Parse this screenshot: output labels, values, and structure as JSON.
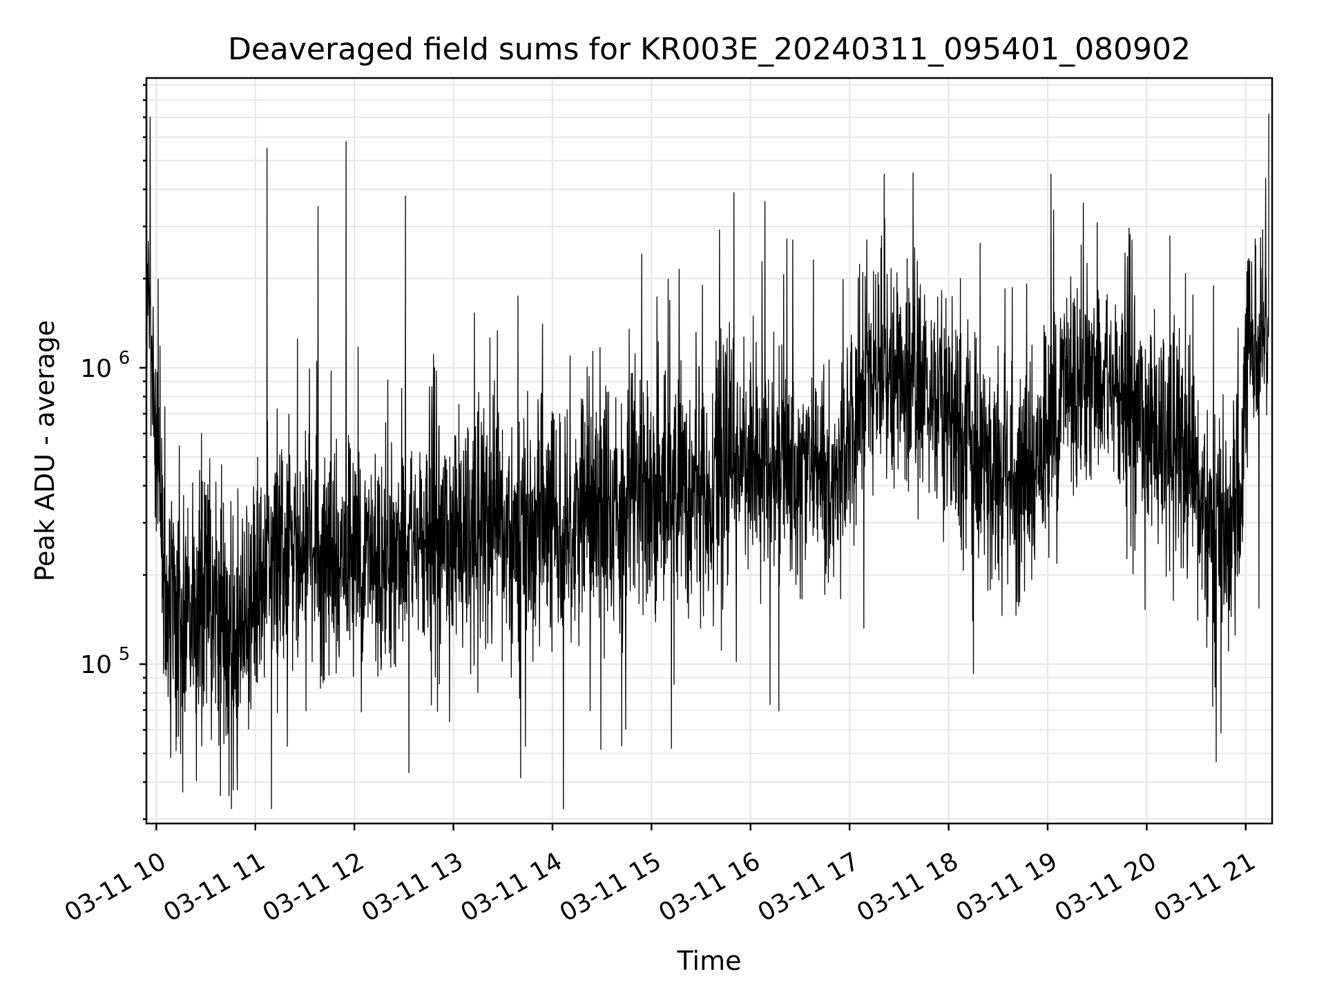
{
  "chart_data": {
    "type": "line",
    "title": "Deaveraged field sums for KR003E_20240311_095401_080902",
    "xlabel": "Time",
    "ylabel": "Peak ADU - average",
    "y_scale": "log",
    "ylim": [
      29000,
      9500000
    ],
    "xlim": [
      "2024-03-11 09:54",
      "2024-03-11 21:16"
    ],
    "grid": true,
    "line_color": "#000000",
    "x_ticks": [
      {
        "value": "2024-03-11 10:00",
        "label": "03-11 10"
      },
      {
        "value": "2024-03-11 11:00",
        "label": "03-11 11"
      },
      {
        "value": "2024-03-11 12:00",
        "label": "03-11 12"
      },
      {
        "value": "2024-03-11 13:00",
        "label": "03-11 13"
      },
      {
        "value": "2024-03-11 14:00",
        "label": "03-11 14"
      },
      {
        "value": "2024-03-11 15:00",
        "label": "03-11 15"
      },
      {
        "value": "2024-03-11 16:00",
        "label": "03-11 16"
      },
      {
        "value": "2024-03-11 17:00",
        "label": "03-11 17"
      },
      {
        "value": "2024-03-11 18:00",
        "label": "03-11 18"
      },
      {
        "value": "2024-03-11 19:00",
        "label": "03-11 19"
      },
      {
        "value": "2024-03-11 20:00",
        "label": "03-11 20"
      },
      {
        "value": "2024-03-11 21:00",
        "label": "03-11 21"
      }
    ],
    "y_ticks": [
      {
        "value": 100000,
        "base": "10",
        "exp": "5"
      },
      {
        "value": 1000000,
        "base": "10",
        "exp": "6"
      }
    ],
    "series": [
      {
        "x": [
          "2024-03-11 09:54",
          "2024-03-11 09:55",
          "2024-03-11 09:57",
          "2024-03-11 09:59",
          "2024-03-11 10:02",
          "2024-03-11 10:05",
          "2024-03-11 10:08",
          "2024-03-11 10:12",
          "2024-03-11 10:16",
          "2024-03-11 10:22",
          "2024-03-11 10:30",
          "2024-03-11 10:38",
          "2024-03-11 10:42",
          "2024-03-11 10:47",
          "2024-03-11 10:55",
          "2024-03-11 11:06",
          "2024-03-11 11:20",
          "2024-03-11 11:40",
          "2024-03-11 11:55",
          "2024-03-11 12:10",
          "2024-03-11 12:25",
          "2024-03-11 12:31",
          "2024-03-11 12:45",
          "2024-03-11 13:00",
          "2024-03-11 13:20",
          "2024-03-11 13:40",
          "2024-03-11 14:00",
          "2024-03-11 14:20",
          "2024-03-11 14:40",
          "2024-03-11 15:00",
          "2024-03-11 15:20",
          "2024-03-11 15:38",
          "2024-03-11 15:50",
          "2024-03-11 16:10",
          "2024-03-11 16:30",
          "2024-03-11 16:50",
          "2024-03-11 17:00",
          "2024-03-11 17:12",
          "2024-03-11 17:30",
          "2024-03-11 17:50",
          "2024-03-11 18:05",
          "2024-03-11 18:20",
          "2024-03-11 18:40",
          "2024-03-11 19:00",
          "2024-03-11 19:10",
          "2024-03-11 19:25",
          "2024-03-11 19:45",
          "2024-03-11 20:00",
          "2024-03-11 20:20",
          "2024-03-11 20:30",
          "2024-03-11 20:45",
          "2024-03-11 20:57",
          "2024-03-11 21:00",
          "2024-03-11 21:05",
          "2024-03-11 21:10",
          "2024-03-11 21:14"
        ],
        "y": [
          1500000,
          2200000,
          1200000,
          700000,
          400000,
          200000,
          160000,
          170000,
          150000,
          140000,
          150000,
          150000,
          120000,
          110000,
          160000,
          200000,
          220000,
          230000,
          230000,
          230000,
          240000,
          250000,
          260000,
          280000,
          270000,
          270000,
          290000,
          320000,
          350000,
          380000,
          410000,
          430000,
          480000,
          480000,
          460000,
          430000,
          560000,
          1050000,
          950000,
          850000,
          650000,
          480000,
          400000,
          560000,
          900000,
          1000000,
          800000,
          650000,
          500000,
          360000,
          280000,
          300000,
          1000000,
          1300000,
          1400000,
          1600000
        ],
        "noise_sigma_log10": [
          0.18,
          0.18,
          0.2,
          0.2,
          0.2,
          0.22,
          0.22,
          0.22,
          0.22,
          0.22,
          0.22,
          0.22,
          0.22,
          0.22,
          0.2,
          0.2,
          0.2,
          0.2,
          0.2,
          0.2,
          0.21,
          0.21,
          0.21,
          0.21,
          0.21,
          0.21,
          0.21,
          0.22,
          0.22,
          0.22,
          0.22,
          0.22,
          0.2,
          0.16,
          0.16,
          0.16,
          0.18,
          0.18,
          0.18,
          0.18,
          0.2,
          0.2,
          0.2,
          0.2,
          0.2,
          0.2,
          0.2,
          0.2,
          0.2,
          0.2,
          0.2,
          0.2,
          0.18,
          0.18,
          0.18,
          0.18
        ],
        "notable_spikes": [
          {
            "x": "2024-03-11 11:07",
            "y": 5500000
          },
          {
            "x": "2024-03-11 11:55",
            "y": 5800000
          },
          {
            "x": "2024-03-11 11:38",
            "y": 3500000
          },
          {
            "x": "2024-03-11 12:31",
            "y": 3800000
          },
          {
            "x": "2024-03-11 15:50",
            "y": 3900000
          },
          {
            "x": "2024-03-11 17:21",
            "y": 4500000
          },
          {
            "x": "2024-03-11 19:02",
            "y": 4500000
          },
          {
            "x": "2024-03-11 21:14",
            "y": 7200000
          },
          {
            "x": "2024-03-11 10:16",
            "y": 37000
          },
          {
            "x": "2024-03-11 10:44",
            "y": 36000
          },
          {
            "x": "2024-03-11 12:33",
            "y": 43000
          },
          {
            "x": "2024-03-11 14:42",
            "y": 53000
          },
          {
            "x": "2024-03-11 15:12",
            "y": 52000
          },
          {
            "x": "2024-03-11 18:15",
            "y": 93000
          },
          {
            "x": "2024-03-11 20:40",
            "y": 72000
          }
        ]
      }
    ]
  }
}
